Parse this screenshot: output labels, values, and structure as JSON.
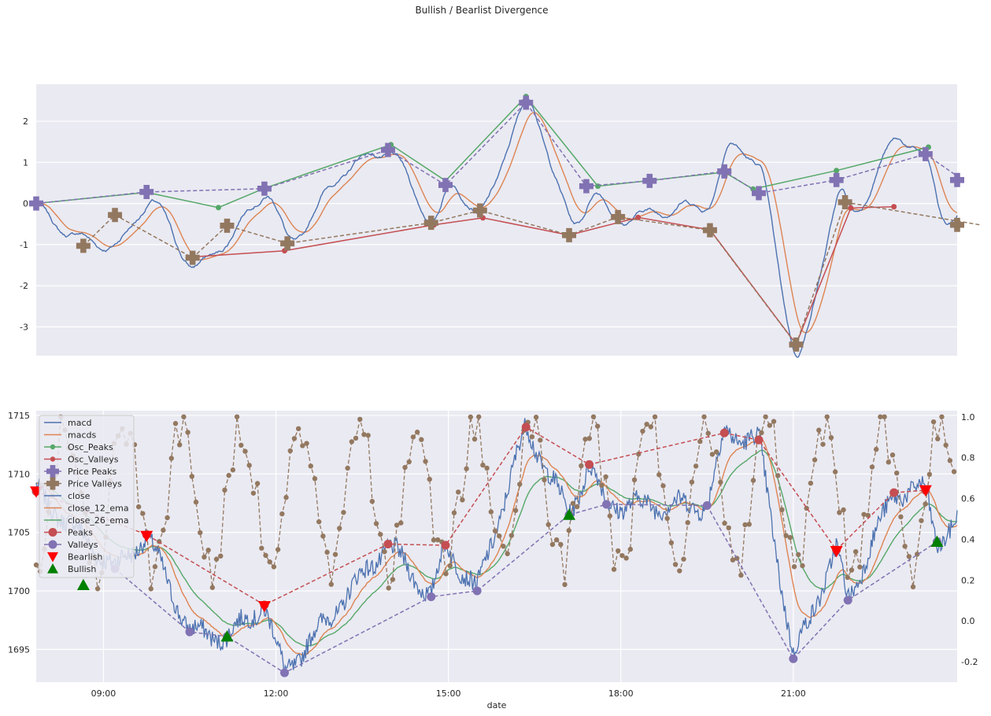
{
  "title": "Bullish / Bearlist Divergence",
  "chart_data": [
    {
      "type": "line",
      "name": "oscillator",
      "ylim": [
        -3.7,
        2.9
      ],
      "yticks": [
        -3,
        -2,
        -1,
        0,
        1,
        2
      ],
      "grid": true,
      "series": [
        {
          "name": "macd",
          "color": "#4c72b0",
          "style": "solid"
        },
        {
          "name": "macds",
          "color": "#dd8452",
          "style": "solid"
        },
        {
          "name": "Osc_Peaks",
          "color": "#55a868",
          "style": "solid",
          "marker": "circle",
          "x": [
            7.83,
            9.75,
            11.0,
            11.8,
            14.0,
            14.95,
            16.35,
            17.6,
            19.8,
            20.3,
            21.75,
            23.35
          ],
          "y": [
            0.0,
            0.27,
            -0.1,
            0.37,
            1.43,
            0.55,
            2.6,
            0.42,
            0.76,
            0.35,
            0.8,
            1.37
          ]
        },
        {
          "name": "Osc_Valleys",
          "color": "#c44e52",
          "style": "solid",
          "marker": "circle",
          "x": [
            10.55,
            12.15,
            14.75,
            15.6,
            17.1,
            18.3,
            19.55,
            21.05,
            22.0,
            22.75
          ],
          "y": [
            -1.3,
            -1.15,
            -0.52,
            -0.35,
            -0.77,
            -0.34,
            -0.64,
            -3.42,
            -0.11,
            -0.08
          ]
        },
        {
          "name": "Price Peaks",
          "color": "#8172b3",
          "style": "dashed",
          "marker": "plus",
          "x": [
            7.83,
            9.75,
            11.8,
            13.95,
            14.95,
            16.35,
            17.4,
            18.5,
            19.8,
            20.4,
            21.75,
            23.3,
            23.95
          ],
          "y": [
            0.0,
            0.28,
            0.36,
            1.3,
            0.45,
            2.45,
            0.42,
            0.55,
            0.78,
            0.25,
            0.57,
            1.2,
            0.57
          ]
        },
        {
          "name": "Price Valleys",
          "color": "#937860",
          "style": "dashed",
          "marker": "plus",
          "x": [
            8.65,
            9.2,
            10.55,
            11.15,
            12.2,
            14.7,
            15.55,
            17.1,
            17.95,
            19.55,
            21.05,
            21.9,
            24.25
          ],
          "y": [
            -1.03,
            -0.28,
            -1.32,
            -0.54,
            -0.97,
            -0.47,
            -0.17,
            -0.77,
            -0.33,
            -0.65,
            -3.43,
            0.03,
            -0.52
          ]
        }
      ]
    },
    {
      "type": "line",
      "name": "price",
      "xlabel": "date",
      "xlim": [
        7.83,
        23.85
      ],
      "xticks": [
        "09:00",
        "12:00",
        "15:00",
        "18:00",
        "21:00"
      ],
      "xtick_values": [
        9,
        12,
        15,
        18,
        21
      ],
      "ylim": [
        1692.2,
        1715.4
      ],
      "yticks": [
        1695,
        1700,
        1705,
        1710,
        1715
      ],
      "ylim_right": [
        -0.3,
        1.03
      ],
      "yticks_right": [
        -0.2,
        0.0,
        0.2,
        0.4,
        0.6,
        0.8,
        1.0
      ],
      "grid": true,
      "legend_position": "upper-left",
      "legend": [
        "macd",
        "macds",
        "Osc_Peaks",
        "Osc_Valleys",
        "Price Peaks",
        "Price Valleys",
        "close",
        "close_12_ema",
        "close_26_ema",
        "Peaks",
        "Valleys",
        "Bearlish",
        "Bullish"
      ],
      "series": [
        {
          "name": "close",
          "color": "#4c72b0",
          "style": "solid"
        },
        {
          "name": "close_12_ema",
          "color": "#dd8452",
          "style": "solid"
        },
        {
          "name": "close_26_ema",
          "color": "#55a868",
          "style": "solid"
        },
        {
          "name": "Peaks",
          "color": "#c44e52",
          "style": "dashed",
          "marker": "circle",
          "x": [
            7.83,
            9.75,
            11.8,
            13.95,
            14.95,
            16.35,
            17.45,
            19.8,
            20.4,
            21.75,
            22.75,
            23.3
          ],
          "y": [
            1708.5,
            1704.8,
            1698.8,
            1704.0,
            1703.9,
            1714.0,
            1710.8,
            1713.5,
            1712.9,
            1703.5,
            1708.4,
            1708.6
          ]
        },
        {
          "name": "Valleys",
          "color": "#8172b3",
          "style": "dashed",
          "marker": "circle",
          "x": [
            9.2,
            10.5,
            11.15,
            12.15,
            14.7,
            15.5,
            17.1,
            17.75,
            19.5,
            21.0,
            21.95,
            23.5
          ],
          "y": [
            1701.9,
            1696.5,
            1696.1,
            1693.0,
            1699.5,
            1700.0,
            1706.5,
            1707.4,
            1707.3,
            1694.2,
            1699.2,
            1704.2
          ]
        },
        {
          "name": "Bearlish",
          "color": "#ff0000",
          "marker": "triangle-down",
          "x": [
            7.83,
            9.75,
            11.8,
            21.75,
            23.3
          ],
          "y": [
            1708.5,
            1704.7,
            1698.7,
            1703.4,
            1708.6
          ]
        },
        {
          "name": "Bullish",
          "color": "#008000",
          "marker": "triangle-up",
          "x": [
            8.65,
            11.15,
            17.1,
            23.5
          ],
          "y": [
            1700.5,
            1696.1,
            1706.5,
            1704.2
          ]
        },
        {
          "name": "Price Valleys",
          "color": "#937860",
          "style": "dashed",
          "marker": "circle",
          "axis": "right"
        }
      ]
    }
  ]
}
